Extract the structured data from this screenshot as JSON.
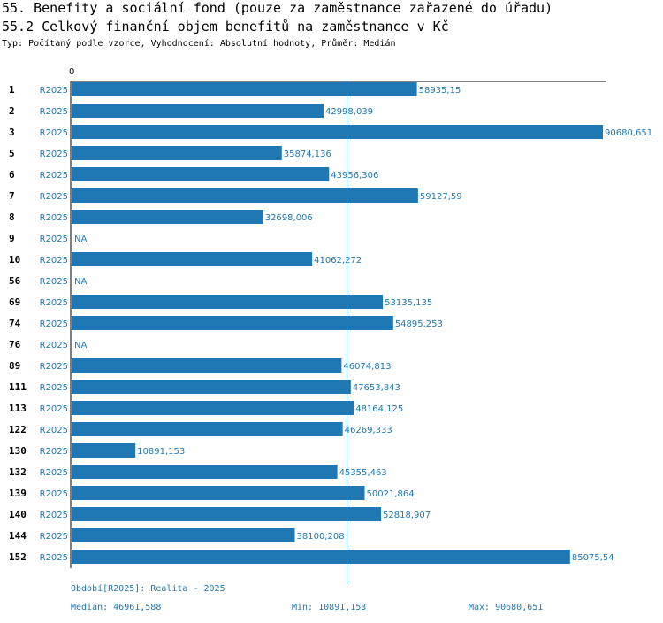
{
  "header": {
    "title": "55. Benefity a sociální fond (pouze za zaměstnance zařazené do úřadu)",
    "subtitle": "55.2 Celkový finanční objem benefitů na zaměstnance v Kč",
    "type_line": "Typ: Počítaný podle vzorce, Vyhodnocení: Absolutní hodnoty, Průměr: Medián"
  },
  "chart_data": {
    "type": "bar",
    "orientation": "horizontal",
    "series_name": "R2025",
    "axis_zero_label": "0",
    "xlim": [
      0,
      90680.651
    ],
    "median_value": 46961.588,
    "categories": [
      "1",
      "2",
      "3",
      "5",
      "6",
      "7",
      "8",
      "9",
      "10",
      "56",
      "69",
      "74",
      "76",
      "89",
      "111",
      "113",
      "122",
      "130",
      "132",
      "139",
      "140",
      "144",
      "152"
    ],
    "values": [
      58935.15,
      42998.039,
      90680.651,
      35874.136,
      43956.306,
      59127.59,
      32698.006,
      null,
      41062.272,
      null,
      53135.135,
      54895.253,
      null,
      46074.813,
      47653.843,
      48164.125,
      46269.333,
      10891.153,
      45355.463,
      50021.864,
      52818.907,
      38100.208,
      85075.54
    ],
    "value_labels": [
      "58935,15",
      "42998,039",
      "90680,651",
      "35874,136",
      "43956,306",
      "59127,59",
      "32698,006",
      "NA",
      "41062,272",
      "NA",
      "53135,135",
      "54895,253",
      "NA",
      "46074,813",
      "47653,843",
      "48164,125",
      "46269,333",
      "10891,153",
      "45355,463",
      "50021,864",
      "52818,907",
      "38100,208",
      "85075,54"
    ]
  },
  "colors": {
    "bar": "#1f77b4",
    "label": "#1f77b4",
    "axis": "#000000"
  },
  "footer": {
    "period": "Období[R2025]: Realita - 2025",
    "median": "Medián: 46961,588",
    "min": "Min: 10891,153",
    "max": "Max: 90680,651"
  }
}
